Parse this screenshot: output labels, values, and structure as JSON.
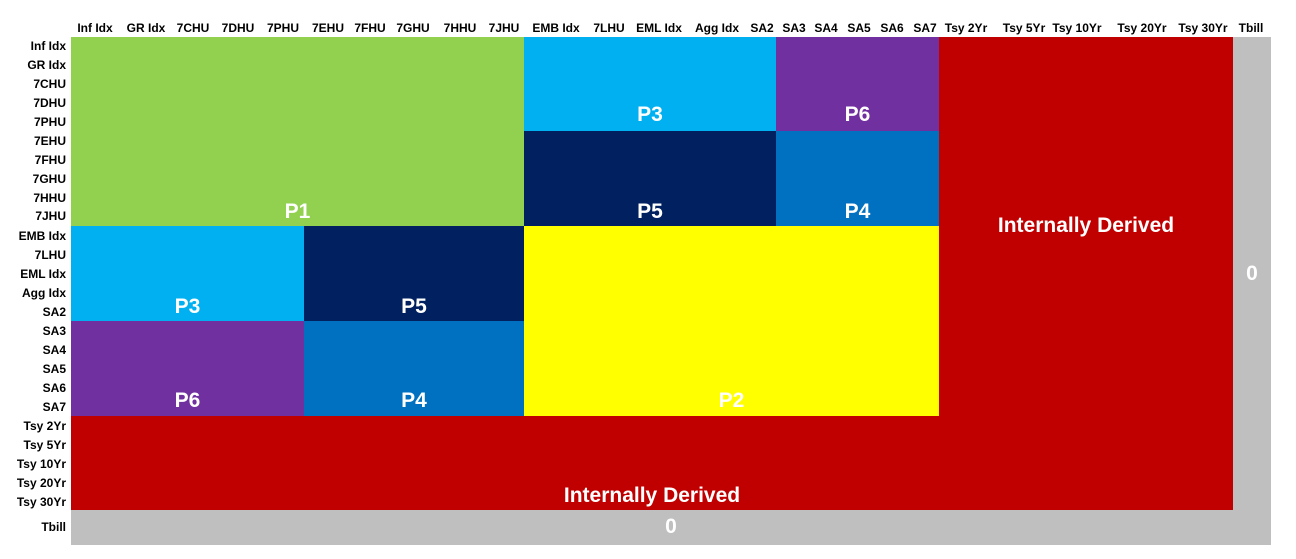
{
  "columns": [
    "Inf Idx",
    "GR Idx",
    "7CHU",
    "7DHU",
    "7PHU",
    "7EHU",
    "7FHU",
    "7GHU",
    "7HHU",
    "7JHU",
    "EMB Idx",
    "7LHU",
    "EML Idx",
    "Agg Idx",
    "SA2",
    "SA3",
    "SA4",
    "SA5",
    "SA6",
    "SA7",
    "Tsy 2Yr",
    "Tsy 5Yr",
    "Tsy 10Yr",
    "Tsy 20Yr",
    "Tsy 30Yr",
    "Tbill"
  ],
  "rows": [
    "Inf Idx",
    "GR Idx",
    "7CHU",
    "7DHU",
    "7PHU",
    "7EHU",
    "7FHU",
    "7GHU",
    "7HHU",
    "7JHU",
    "EMB Idx",
    "7LHU",
    "EML Idx",
    "Agg Idx",
    "SA2",
    "SA3",
    "SA4",
    "SA5",
    "SA6",
    "SA7",
    "Tsy 2Yr",
    "Tsy 5Yr",
    "Tsy 10Yr",
    "Tsy 20Yr",
    "Tsy 30Yr",
    "Tbill"
  ],
  "colors": {
    "P1": "#92d050",
    "P2": "#ffff00",
    "P3": "#00b0f0",
    "P4": "#0070c0",
    "P5": "#002060",
    "P6": "#7030a0",
    "internally_derived": "#c00000",
    "zero": "#bfbfbf"
  },
  "blocks": {
    "p1": "P1",
    "p3_top": "P3",
    "p6_top": "P6",
    "p5_top": "P5",
    "p4_top": "P4",
    "p3_left": "P3",
    "p5_left": "P5",
    "p6_left": "P6",
    "p4_left": "P4",
    "p2": "P2",
    "internal_right": "Internally Derived",
    "internal_bottom": "Internally Derived",
    "zero_right": "0",
    "zero_bottom": "0"
  }
}
